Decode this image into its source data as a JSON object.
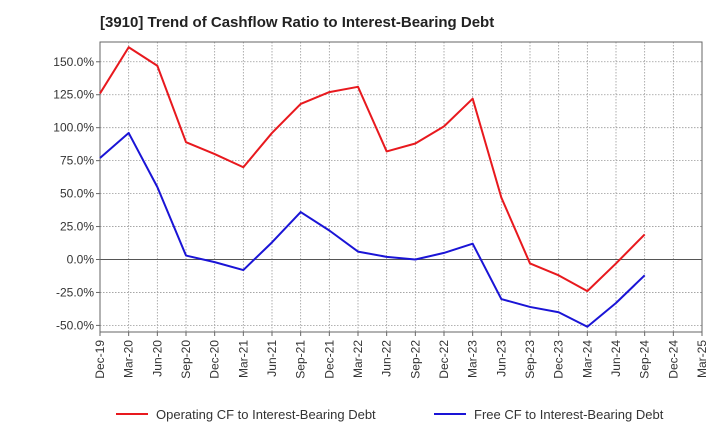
{
  "chart_data": {
    "type": "line",
    "title": "[3910]  Trend of Cashflow Ratio to Interest-Bearing Debt",
    "xlabel": "",
    "ylabel": "",
    "x": [
      "Dec-19",
      "Mar-20",
      "Jun-20",
      "Sep-20",
      "Dec-20",
      "Mar-21",
      "Jun-21",
      "Sep-21",
      "Dec-21",
      "Mar-22",
      "Jun-22",
      "Sep-22",
      "Dec-22",
      "Mar-23",
      "Jun-23",
      "Sep-23",
      "Dec-23",
      "Mar-24",
      "Jun-24",
      "Sep-24",
      "Dec-24",
      "Mar-25"
    ],
    "ylim": [
      -55,
      165
    ],
    "yticks": [
      -50,
      -25,
      0,
      25,
      50,
      75,
      100,
      125,
      150
    ],
    "ytick_labels": [
      "-50.0%",
      "-25.0%",
      "0.0%",
      "25.0%",
      "50.0%",
      "75.0%",
      "100.0%",
      "125.0%",
      "150.0%"
    ],
    "grid": true,
    "legend_position": "bottom",
    "series": [
      {
        "name": "Operating CF to Interest-Bearing Debt",
        "color": "#e8191e",
        "values": [
          126,
          161,
          147,
          89,
          80,
          70,
          96,
          118,
          127,
          131,
          82,
          88,
          101,
          122,
          47,
          -3,
          -12,
          -24,
          -3,
          19,
          null,
          null
        ]
      },
      {
        "name": "Free CF to Interest-Bearing Debt",
        "color": "#1a14d6",
        "values": [
          77,
          96,
          55,
          3,
          -2,
          -8,
          13,
          36,
          22,
          6,
          2,
          0,
          5,
          12,
          -30,
          -36,
          -40,
          -51,
          -33,
          -12,
          null,
          null
        ]
      }
    ]
  }
}
